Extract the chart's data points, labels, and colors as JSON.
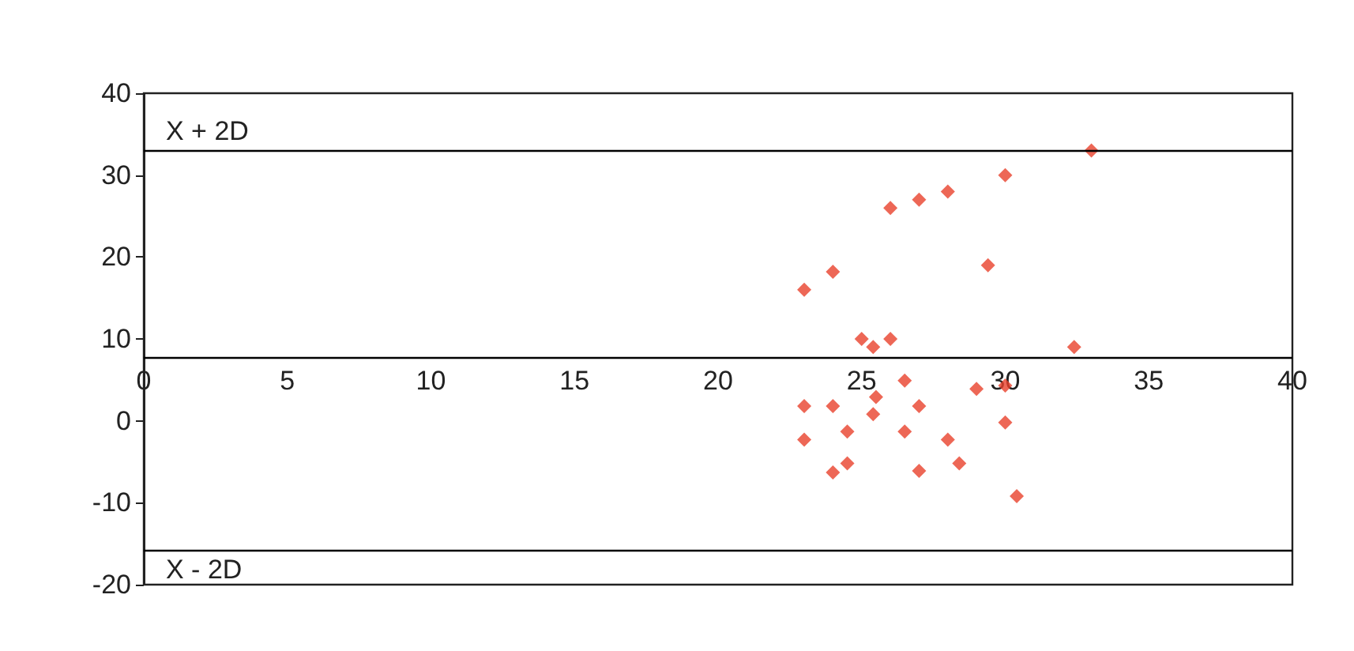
{
  "chart_data": {
    "type": "scatter",
    "marker": "diamond",
    "grid": false,
    "x": [
      23,
      24,
      25,
      25.4,
      26,
      26,
      27,
      28,
      30,
      29.4,
      32.4,
      33,
      23,
      24,
      23,
      24.5,
      25.5,
      25.4,
      26.5,
      26.5,
      27,
      28,
      29,
      30,
      30,
      24,
      24.5,
      27,
      28.4,
      30.4
    ],
    "series": [
      {
        "color": "#e8412c",
        "values": [
          16,
          18.2,
          10,
          9,
          10,
          26,
          27,
          28,
          30,
          19,
          9,
          33,
          1.8,
          1.8,
          -2.3,
          -1.3,
          2.9,
          0.8,
          4.9,
          -1.3,
          1.8,
          -2.3,
          3.9,
          4.3,
          -0.2,
          -6.3,
          -5.2,
          -6.1,
          -5.2,
          -9.2
        ]
      }
    ],
    "xlim": [
      0,
      40
    ],
    "xticks": [
      0,
      5,
      10,
      15,
      20,
      25,
      30,
      35,
      40
    ],
    "ylim": [
      -20,
      40
    ],
    "yticks": [
      -20,
      -10,
      0,
      10,
      20,
      30,
      40
    ],
    "ref_lines": [
      {
        "axis": "y",
        "value": 33,
        "label": "X + 2D"
      },
      {
        "axis": "y",
        "value": 7.7,
        "label": null
      },
      {
        "axis": "y",
        "value": -15.8,
        "label": "X - 2D"
      }
    ]
  }
}
